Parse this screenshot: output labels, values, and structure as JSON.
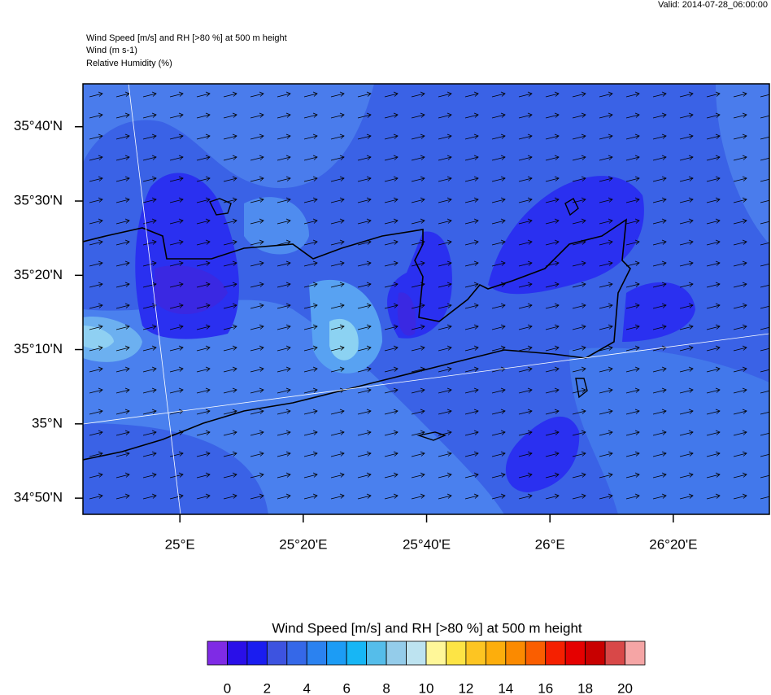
{
  "valid": "Valid: 2014-07-28_06:00:00",
  "header": {
    "lines": [
      "Wind Speed [m/s] and RH [>80 %] at 500 m height",
      "Wind   (m s-1)",
      "Relative Humidity   (%)"
    ]
  },
  "map": {
    "xlim": [
      24.738,
      26.593
    ],
    "ylim": [
      34.797,
      35.763
    ],
    "xticks": [
      {
        "value": 25,
        "label": "25°E"
      },
      {
        "value": 25.3333,
        "label": "25°20'E"
      },
      {
        "value": 25.6667,
        "label": "25°40'E"
      },
      {
        "value": 26,
        "label": "26°E"
      },
      {
        "value": 26.3333,
        "label": "26°20'E"
      }
    ],
    "yticks": [
      {
        "value": 34.8333,
        "label": "34°50'N"
      },
      {
        "value": 35,
        "label": "35°N"
      },
      {
        "value": 35.1667,
        "label": "35°10'N"
      },
      {
        "value": 35.3333,
        "label": "35°20'N"
      },
      {
        "value": 35.5,
        "label": "35°30'N"
      },
      {
        "value": 35.6667,
        "label": "35°40'N"
      }
    ]
  },
  "colorbar": {
    "title": "Wind Speed [m/s] and RH [>80 %] at 500 m height",
    "lim": [
      -1,
      21
    ],
    "ticks": [
      0,
      2,
      4,
      6,
      8,
      10,
      12,
      14,
      16,
      18,
      20
    ],
    "colors": [
      "#7f2be5",
      "#2a0fe8",
      "#1a1df0",
      "#3d53e0",
      "#3568e8",
      "#2b82f0",
      "#1c9cf5",
      "#17b6f5",
      "#55bdea",
      "#94ccea",
      "#bde3f0",
      "#fff799",
      "#fde445",
      "#fdc522",
      "#fdae0c",
      "#fb8a00",
      "#fa5e00",
      "#f52000",
      "#e50000",
      "#c80000",
      "#d84848",
      "#f5a5a5"
    ]
  }
}
